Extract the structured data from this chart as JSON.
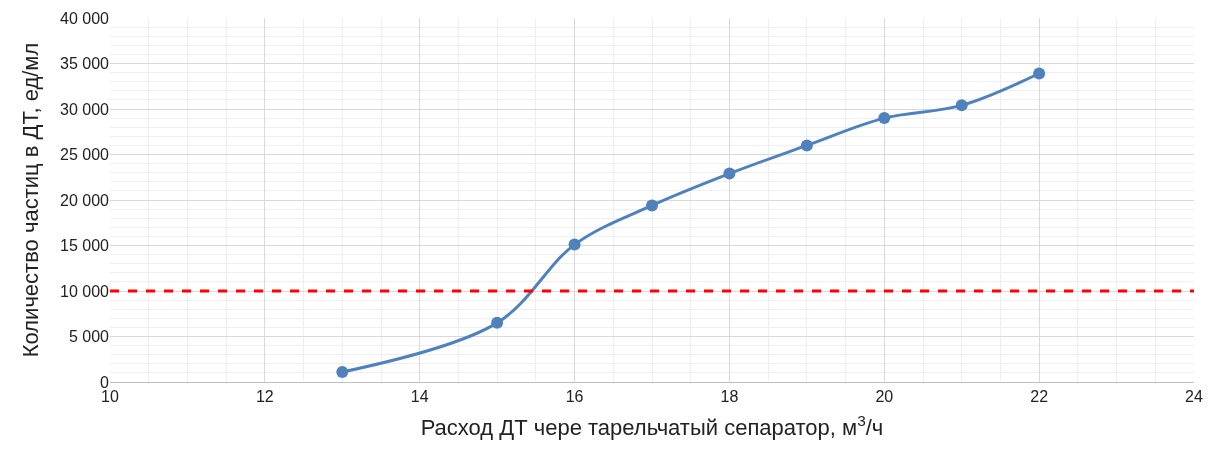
{
  "chart_data": {
    "type": "line",
    "xlabel": "Расход ДТ чере тарельчатый сепаратор, м$^{3}$/ч",
    "ylabel": "Количество частиц в ДТ, ед/мл",
    "x": [
      13,
      15,
      16,
      17,
      18,
      19,
      20,
      21,
      22
    ],
    "series": [
      {
        "color": "#4f81bd",
        "values": [
          1100,
          6500,
          15100,
          19400,
          22900,
          26000,
          29000,
          30400,
          33900
        ]
      }
    ],
    "xlim": [
      10,
      24
    ],
    "xticks": [
      10,
      12,
      14,
      16,
      18,
      20,
      22,
      24
    ],
    "ylim": [
      0,
      40000
    ],
    "yticks": [
      0,
      {
        "value": 5000,
        "label": "5 000"
      },
      {
        "value": 10000,
        "label": "10 000"
      },
      {
        "value": 15000,
        "label": "15 000"
      },
      {
        "value": 20000,
        "label": "20 000"
      },
      {
        "value": 25000,
        "label": "25 000"
      },
      {
        "value": 30000,
        "label": "30 000"
      },
      {
        "value": 35000,
        "label": "35 000"
      },
      {
        "value": 40000,
        "label": "40 000"
      }
    ],
    "ref_lines": [
      {
        "axis": "y",
        "value": 10000,
        "color": "#ff0000",
        "line_style": "dashed"
      }
    ],
    "grid": true,
    "marker": "circle",
    "line_style": "solid"
  }
}
